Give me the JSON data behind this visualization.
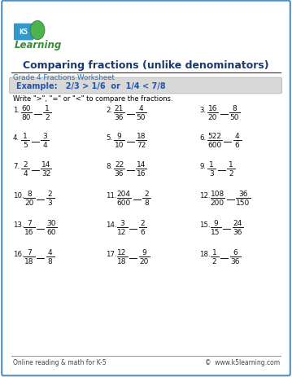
{
  "title": "Comparing fractions (unlike denominators)",
  "subtitle": "Grade 4 Fractions Worksheet",
  "example_text": "Example:   2/3 > 1/6  or  1/4 < 7/8",
  "instruction": "Write \">\", \"=\" or \"<\" to compare the fractions.",
  "problems": [
    {
      "num": "1.",
      "n1": "60",
      "d1": "80",
      "n2": "1",
      "d2": "2"
    },
    {
      "num": "2.",
      "n1": "21",
      "d1": "36",
      "n2": "4",
      "d2": "50"
    },
    {
      "num": "3.",
      "n1": "16",
      "d1": "20",
      "n2": "8",
      "d2": "50"
    },
    {
      "num": "4.",
      "n1": "1",
      "d1": "5",
      "n2": "3",
      "d2": "4"
    },
    {
      "num": "5.",
      "n1": "9",
      "d1": "10",
      "n2": "18",
      "d2": "72"
    },
    {
      "num": "6.",
      "n1": "522",
      "d1": "600",
      "n2": "4",
      "d2": "6"
    },
    {
      "num": "7.",
      "n1": "2",
      "d1": "4",
      "n2": "14",
      "d2": "32"
    },
    {
      "num": "8.",
      "n1": "22",
      "d1": "36",
      "n2": "14",
      "d2": "16"
    },
    {
      "num": "9.",
      "n1": "1",
      "d1": "3",
      "n2": "1",
      "d2": "2"
    },
    {
      "num": "10.",
      "n1": "8",
      "d1": "20",
      "n2": "2",
      "d2": "3"
    },
    {
      "num": "11.",
      "n1": "204",
      "d1": "600",
      "n2": "2",
      "d2": "8"
    },
    {
      "num": "12.",
      "n1": "108",
      "d1": "200",
      "n2": "36",
      "d2": "150"
    },
    {
      "num": "13.",
      "n1": "7",
      "d1": "16",
      "n2": "30",
      "d2": "60"
    },
    {
      "num": "14.",
      "n1": "3",
      "d1": "12",
      "n2": "2",
      "d2": "6"
    },
    {
      "num": "15.",
      "n1": "9",
      "d1": "15",
      "n2": "24",
      "d2": "36"
    },
    {
      "num": "16.",
      "n1": "7",
      "d1": "18",
      "n2": "4",
      "d2": "8"
    },
    {
      "num": "17.",
      "n1": "12",
      "d1": "18",
      "n2": "9",
      "d2": "20"
    },
    {
      "num": "18.",
      "n1": "1",
      "d1": "2",
      "n2": "6",
      "d2": "36"
    }
  ],
  "footer_left": "Online reading & math for K-5",
  "footer_right": "©  www.k5learning.com",
  "border_color": "#4a90c4",
  "title_color": "#1a3a6e",
  "subtitle_color": "#2e6da4",
  "example_bg": "#d8d8d8",
  "example_text_color": "#2255aa",
  "bg_color": "#ffffff",
  "text_color": "#000000",
  "fraction_color": "#222222",
  "footer_color": "#444444",
  "watermark_color": "#dde8f0"
}
